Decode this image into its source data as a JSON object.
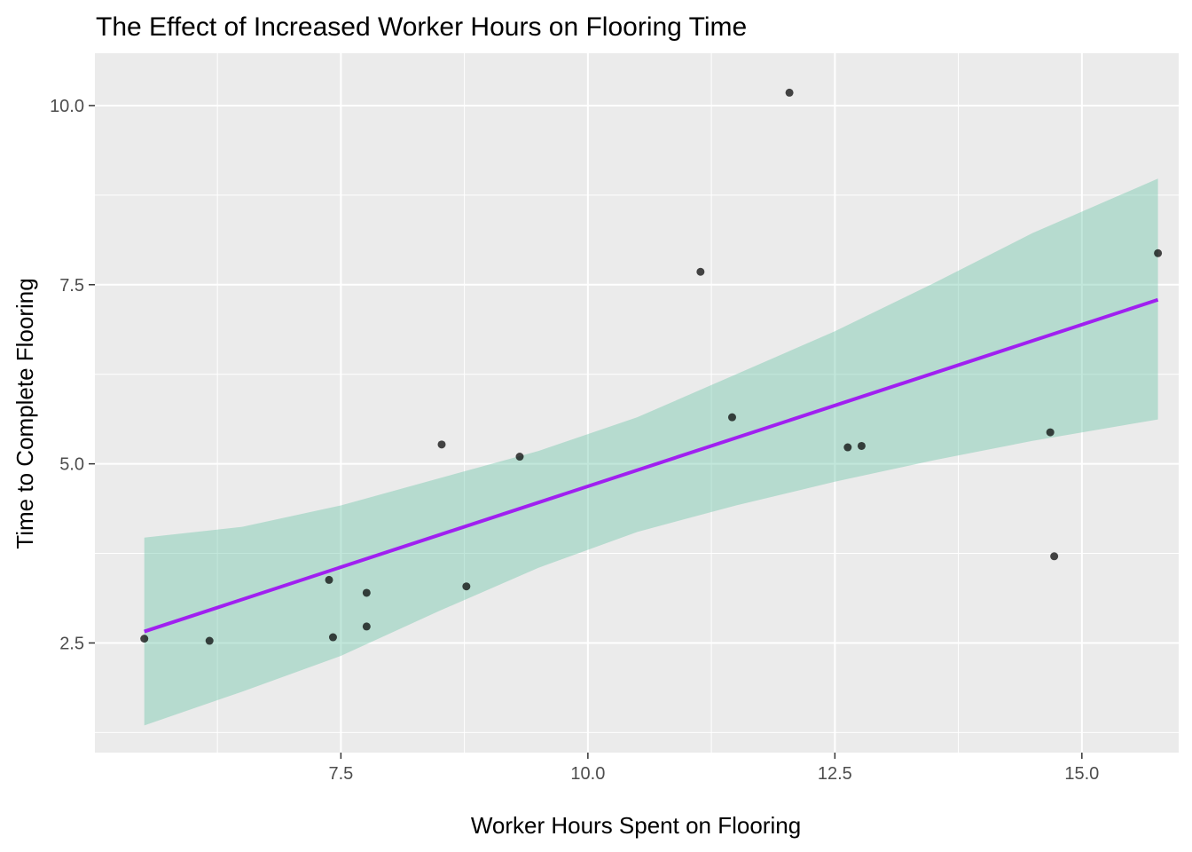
{
  "chart_data": {
    "type": "scatter",
    "title": "The Effect of Increased Worker Hours on Flooring Time",
    "xlabel": "Worker Hours Spent on Flooring",
    "ylabel": "Time to Complete Flooring",
    "xlim": [
      5.01,
      15.98
    ],
    "ylim": [
      0.97,
      10.73
    ],
    "x_ticks": [
      7.5,
      10.0,
      12.5,
      15.0
    ],
    "x_tick_labels": [
      "7.5",
      "10.0",
      "12.5",
      "15.0"
    ],
    "y_ticks": [
      2.5,
      5.0,
      7.5,
      10.0
    ],
    "y_tick_labels": [
      "2.5",
      "5.0",
      "7.5",
      "10.0"
    ],
    "grid": true,
    "legend": "none",
    "colors": {
      "panel_background": "#ebebeb",
      "grid": "#ffffff",
      "points": "#000000",
      "fit_line": "#a020f0",
      "confidence_band": "#66c2a5"
    },
    "points": [
      {
        "x": 5.51,
        "y": 2.56
      },
      {
        "x": 6.17,
        "y": 2.53
      },
      {
        "x": 7.38,
        "y": 3.38
      },
      {
        "x": 7.42,
        "y": 2.58
      },
      {
        "x": 7.76,
        "y": 3.2
      },
      {
        "x": 7.76,
        "y": 2.73
      },
      {
        "x": 8.52,
        "y": 5.27
      },
      {
        "x": 8.77,
        "y": 3.29
      },
      {
        "x": 9.31,
        "y": 5.1
      },
      {
        "x": 11.14,
        "y": 7.68
      },
      {
        "x": 11.46,
        "y": 5.65
      },
      {
        "x": 12.04,
        "y": 10.18
      },
      {
        "x": 12.63,
        "y": 5.23
      },
      {
        "x": 12.77,
        "y": 5.25
      },
      {
        "x": 14.68,
        "y": 5.44
      },
      {
        "x": 14.72,
        "y": 3.71
      },
      {
        "x": 15.77,
        "y": 7.94
      }
    ],
    "fit_line": {
      "x": [
        5.51,
        15.77
      ],
      "y": [
        2.66,
        7.29
      ]
    },
    "confidence_band": {
      "x": [
        5.51,
        6.5,
        7.5,
        8.5,
        9.5,
        10.5,
        11.5,
        12.5,
        13.5,
        14.5,
        15.77
      ],
      "lower": [
        1.35,
        1.82,
        2.32,
        2.95,
        3.55,
        4.05,
        4.42,
        4.75,
        5.05,
        5.32,
        5.62
      ],
      "upper": [
        3.97,
        4.12,
        4.42,
        4.8,
        5.18,
        5.65,
        6.25,
        6.85,
        7.52,
        8.22,
        8.98
      ]
    }
  }
}
